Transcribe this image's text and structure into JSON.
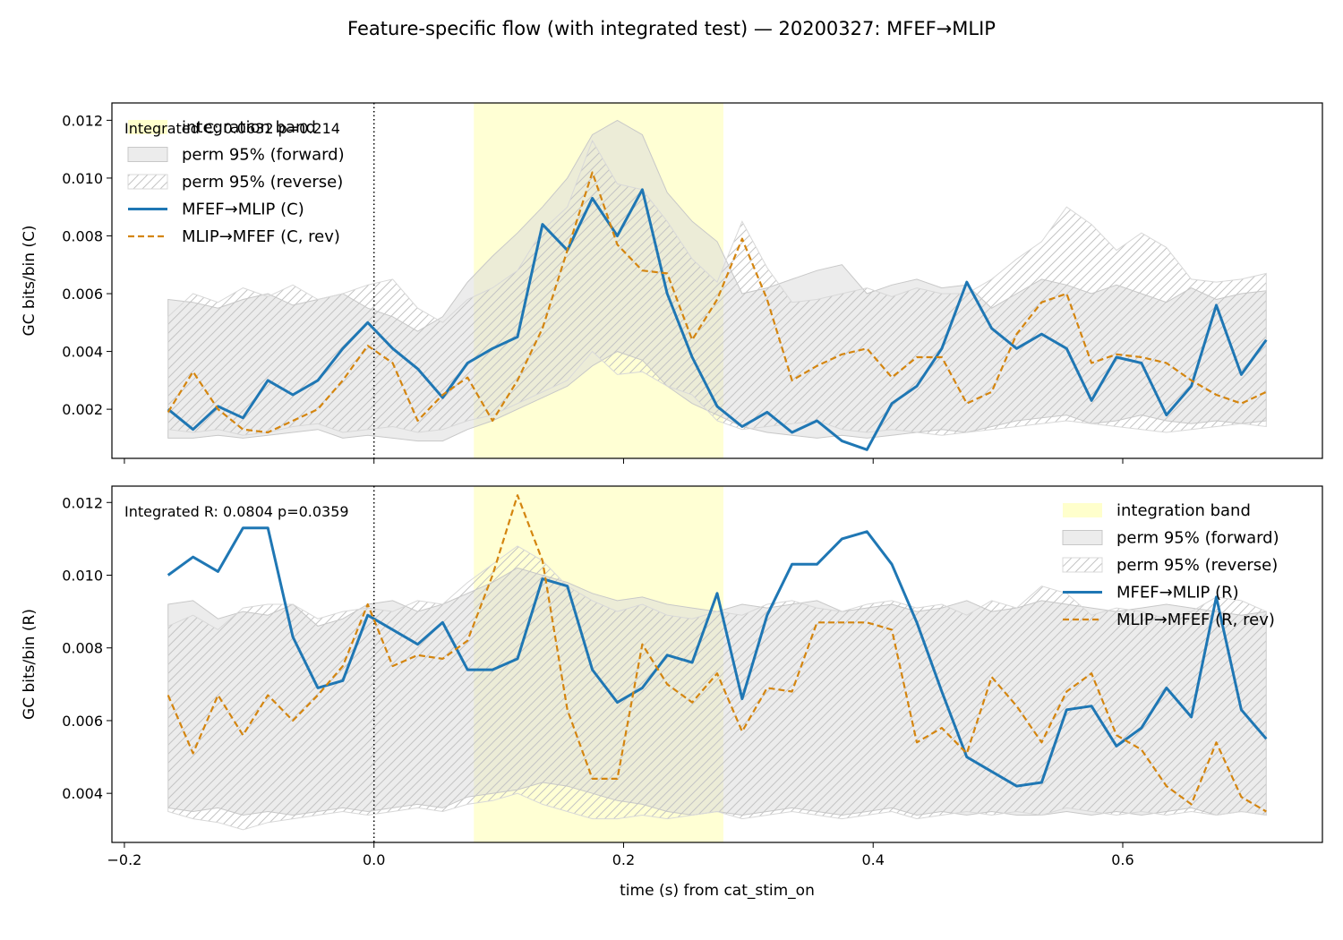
{
  "chart_data": {
    "type": "line",
    "title": "Feature-specific flow (with integrated test) — 20200327: MFEF→MLIP",
    "xlabel": "time (s) from cat_stim_on",
    "xlim": [
      -0.21,
      0.76
    ],
    "x_ticks": [
      -0.2,
      0.0,
      0.2,
      0.4,
      0.6
    ],
    "x_tick_labels": [
      "−0.2",
      "0.0",
      "0.2",
      "0.4",
      "0.6"
    ],
    "integration_band": [
      0.08,
      0.28
    ],
    "event_line_x": 0.0,
    "colors": {
      "forward": "#1f77b4",
      "reverse": "#d4850f",
      "band": "#ffffcc",
      "perm_fill": "#d9d9d9",
      "hatch": "#bfbfbf"
    },
    "panels": [
      {
        "id": "C",
        "ylabel": "GC bits/bin (C)",
        "ylim": [
          0.0003,
          0.0126
        ],
        "y_ticks": [
          0.002,
          0.004,
          0.006,
          0.008,
          0.01,
          0.012
        ],
        "y_tick_labels": [
          "0.002",
          "0.004",
          "0.006",
          "0.008",
          "0.010",
          "0.012"
        ],
        "annotation": "Integrated C: 0.0632  p=0.214",
        "legend_position": "upper-left",
        "legend": [
          "integration band",
          "perm 95% (forward)",
          "perm 95% (reverse)",
          "MFEF→MLIP (C)",
          "MLIP→MFEF (C, rev)"
        ],
        "series": [
          {
            "name": "MFEF→MLIP (C)",
            "style": "solid",
            "values": [
              0.002,
              0.0013,
              0.0021,
              0.0017,
              0.003,
              0.0025,
              0.003,
              0.0041,
              0.005,
              0.0041,
              0.0034,
              0.0024,
              0.0036,
              0.0041,
              0.0045,
              0.0084,
              0.0075,
              0.0093,
              0.008,
              0.0096,
              0.006,
              0.0038,
              0.0021,
              0.0014,
              0.0019,
              0.0012,
              0.0016,
              0.0009,
              0.0006,
              0.0022,
              0.0028,
              0.0041,
              0.0064,
              0.0048,
              0.0041,
              0.0046,
              0.0041,
              0.0023,
              0.0038,
              0.0036,
              0.0018,
              0.0028,
              0.0056,
              0.0032,
              0.0044
            ]
          },
          {
            "name": "MLIP→MFEF (C, rev)",
            "style": "dashed",
            "values": [
              0.0019,
              0.0033,
              0.002,
              0.0013,
              0.0012,
              0.0016,
              0.002,
              0.003,
              0.0042,
              0.0036,
              0.0016,
              0.0025,
              0.0031,
              0.0016,
              0.003,
              0.0048,
              0.0075,
              0.0102,
              0.0077,
              0.0068,
              0.0067,
              0.0044,
              0.0058,
              0.0079,
              0.0058,
              0.003,
              0.0035,
              0.0039,
              0.0041,
              0.0031,
              0.0038,
              0.0038,
              0.0022,
              0.0026,
              0.0046,
              0.0057,
              0.006,
              0.0036,
              0.0039,
              0.0038,
              0.0036,
              0.003,
              0.0025,
              0.0022,
              0.0026
            ]
          }
        ],
        "perm_forward": {
          "upper": [
            0.0058,
            0.0057,
            0.0055,
            0.0058,
            0.006,
            0.0056,
            0.0058,
            0.006,
            0.0055,
            0.0052,
            0.0047,
            0.0052,
            0.0064,
            0.0073,
            0.0081,
            0.009,
            0.01,
            0.0115,
            0.012,
            0.0115,
            0.0095,
            0.0085,
            0.0078,
            0.006,
            0.0062,
            0.0065,
            0.0068,
            0.007,
            0.006,
            0.0063,
            0.0065,
            0.0062,
            0.0063,
            0.0055,
            0.006,
            0.0065,
            0.0063,
            0.006,
            0.0063,
            0.006,
            0.0057,
            0.0062,
            0.0058,
            0.006,
            0.0061
          ],
          "lower": [
            0.001,
            0.001,
            0.0011,
            0.001,
            0.0011,
            0.0012,
            0.0013,
            0.001,
            0.0011,
            0.001,
            0.0009,
            0.0009,
            0.0013,
            0.0016,
            0.002,
            0.0024,
            0.0028,
            0.0035,
            0.004,
            0.0037,
            0.0028,
            0.0022,
            0.0018,
            0.0014,
            0.0012,
            0.0011,
            0.001,
            0.0011,
            0.001,
            0.0011,
            0.0012,
            0.0013,
            0.0012,
            0.0014,
            0.0016,
            0.0017,
            0.0018,
            0.0015,
            0.0016,
            0.0018,
            0.0016,
            0.0015,
            0.0016,
            0.0015,
            0.0016
          ]
        },
        "perm_reverse": {
          "upper": [
            0.0052,
            0.006,
            0.0057,
            0.0062,
            0.0059,
            0.0063,
            0.0058,
            0.006,
            0.0063,
            0.0065,
            0.0055,
            0.005,
            0.0058,
            0.0062,
            0.0068,
            0.0082,
            0.009,
            0.0113,
            0.0098,
            0.0096,
            0.0085,
            0.0072,
            0.0064,
            0.0085,
            0.0069,
            0.0057,
            0.0058,
            0.006,
            0.0062,
            0.0059,
            0.0062,
            0.006,
            0.006,
            0.0065,
            0.0072,
            0.0078,
            0.009,
            0.0084,
            0.0075,
            0.0081,
            0.0076,
            0.0065,
            0.0064,
            0.0065,
            0.0067
          ],
          "lower": [
            0.0013,
            0.0012,
            0.0013,
            0.0011,
            0.0012,
            0.0014,
            0.0015,
            0.0012,
            0.0013,
            0.0014,
            0.0012,
            0.0013,
            0.0016,
            0.0018,
            0.0022,
            0.0026,
            0.003,
            0.004,
            0.0032,
            0.0033,
            0.0028,
            0.0025,
            0.0016,
            0.0013,
            0.0014,
            0.0015,
            0.0016,
            0.0013,
            0.0012,
            0.0013,
            0.0012,
            0.0011,
            0.0012,
            0.0013,
            0.0014,
            0.0015,
            0.0016,
            0.0015,
            0.0014,
            0.0013,
            0.0012,
            0.0013,
            0.0014,
            0.0015,
            0.0014
          ]
        }
      },
      {
        "id": "R",
        "ylabel": "GC bits/bin (R)",
        "ylim": [
          0.00265,
          0.01245
        ],
        "y_ticks": [
          0.004,
          0.006,
          0.008,
          0.01,
          0.012
        ],
        "y_tick_labels": [
          "0.004",
          "0.006",
          "0.008",
          "0.010",
          "0.012"
        ],
        "annotation": "Integrated R: 0.0804  p=0.0359",
        "legend_position": "upper-right",
        "legend": [
          "integration band",
          "perm 95% (forward)",
          "perm 95% (reverse)",
          "MFEF→MLIP (R)",
          "MLIP→MFEF (R, rev)"
        ],
        "series": [
          {
            "name": "MFEF→MLIP (R)",
            "style": "solid",
            "values": [
              0.01,
              0.0105,
              0.0101,
              0.0113,
              0.0113,
              0.0083,
              0.0069,
              0.0071,
              0.0089,
              0.0085,
              0.0081,
              0.0087,
              0.0074,
              0.0074,
              0.0077,
              0.0099,
              0.0097,
              0.0074,
              0.0065,
              0.0069,
              0.0078,
              0.0076,
              0.0095,
              0.0066,
              0.0089,
              0.0103,
              0.0103,
              0.011,
              0.0112,
              0.0103,
              0.0087,
              0.0068,
              0.005,
              0.0046,
              0.0042,
              0.0043,
              0.0063,
              0.0064,
              0.0053,
              0.0058,
              0.0069,
              0.0061,
              0.0094,
              0.0063,
              0.0055
            ]
          },
          {
            "name": "MLIP→MFEF (R, rev)",
            "style": "dashed",
            "values": [
              0.0067,
              0.0051,
              0.0067,
              0.0056,
              0.0067,
              0.006,
              0.0067,
              0.0075,
              0.0092,
              0.0075,
              0.0078,
              0.0077,
              0.0082,
              0.01,
              0.0122,
              0.0104,
              0.0063,
              0.0044,
              0.0044,
              0.0081,
              0.007,
              0.0065,
              0.0073,
              0.0057,
              0.0069,
              0.0068,
              0.0087,
              0.0087,
              0.0087,
              0.0085,
              0.0054,
              0.0058,
              0.0051,
              0.0072,
              0.0064,
              0.0054,
              0.0068,
              0.0073,
              0.0056,
              0.0052,
              0.0042,
              0.0037,
              0.0054,
              0.0039,
              0.0035
            ]
          }
        ],
        "perm_forward": {
          "upper": [
            0.0092,
            0.0093,
            0.0088,
            0.009,
            0.0089,
            0.0092,
            0.0086,
            0.0088,
            0.0092,
            0.0093,
            0.009,
            0.0092,
            0.0095,
            0.0098,
            0.0102,
            0.01,
            0.0098,
            0.0095,
            0.0093,
            0.0094,
            0.0092,
            0.0091,
            0.009,
            0.0092,
            0.0091,
            0.0092,
            0.0093,
            0.009,
            0.0091,
            0.0092,
            0.009,
            0.0091,
            0.0093,
            0.009,
            0.0091,
            0.0093,
            0.0092,
            0.0091,
            0.009,
            0.0091,
            0.0092,
            0.0091,
            0.009,
            0.0089,
            0.009
          ],
          "lower": [
            0.0036,
            0.0035,
            0.0036,
            0.0034,
            0.0035,
            0.0034,
            0.0035,
            0.0036,
            0.0035,
            0.0036,
            0.0037,
            0.0036,
            0.0039,
            0.004,
            0.0041,
            0.0043,
            0.0042,
            0.004,
            0.0038,
            0.0037,
            0.0035,
            0.0034,
            0.0035,
            0.0034,
            0.0035,
            0.0036,
            0.0035,
            0.0034,
            0.0035,
            0.0036,
            0.0034,
            0.0035,
            0.0034,
            0.0035,
            0.0034,
            0.0034,
            0.0035,
            0.0034,
            0.0035,
            0.0034,
            0.0035,
            0.0036,
            0.0034,
            0.0035,
            0.0034
          ]
        },
        "perm_reverse": {
          "upper": [
            0.0086,
            0.0089,
            0.0085,
            0.0091,
            0.0092,
            0.0092,
            0.0088,
            0.009,
            0.0091,
            0.009,
            0.0093,
            0.0092,
            0.0098,
            0.0103,
            0.0108,
            0.0104,
            0.0097,
            0.0093,
            0.009,
            0.0092,
            0.0089,
            0.0088,
            0.009,
            0.0089,
            0.0092,
            0.0093,
            0.0091,
            0.009,
            0.0092,
            0.0093,
            0.0091,
            0.0092,
            0.0089,
            0.0093,
            0.0091,
            0.0097,
            0.0095,
            0.0089,
            0.0091,
            0.009,
            0.0088,
            0.009,
            0.0094,
            0.0093,
            0.009
          ],
          "lower": [
            0.0035,
            0.0033,
            0.0032,
            0.003,
            0.0032,
            0.0033,
            0.0034,
            0.0035,
            0.0034,
            0.0035,
            0.0036,
            0.0035,
            0.0037,
            0.0038,
            0.004,
            0.0037,
            0.0035,
            0.0033,
            0.0033,
            0.0034,
            0.0033,
            0.0034,
            0.0035,
            0.0033,
            0.0034,
            0.0035,
            0.0034,
            0.0033,
            0.0034,
            0.0035,
            0.0033,
            0.0034,
            0.0035,
            0.0034,
            0.0035,
            0.0034,
            0.0036,
            0.0035,
            0.0034,
            0.0035,
            0.0034,
            0.0035,
            0.0034,
            0.0035,
            0.0034
          ]
        }
      }
    ]
  }
}
